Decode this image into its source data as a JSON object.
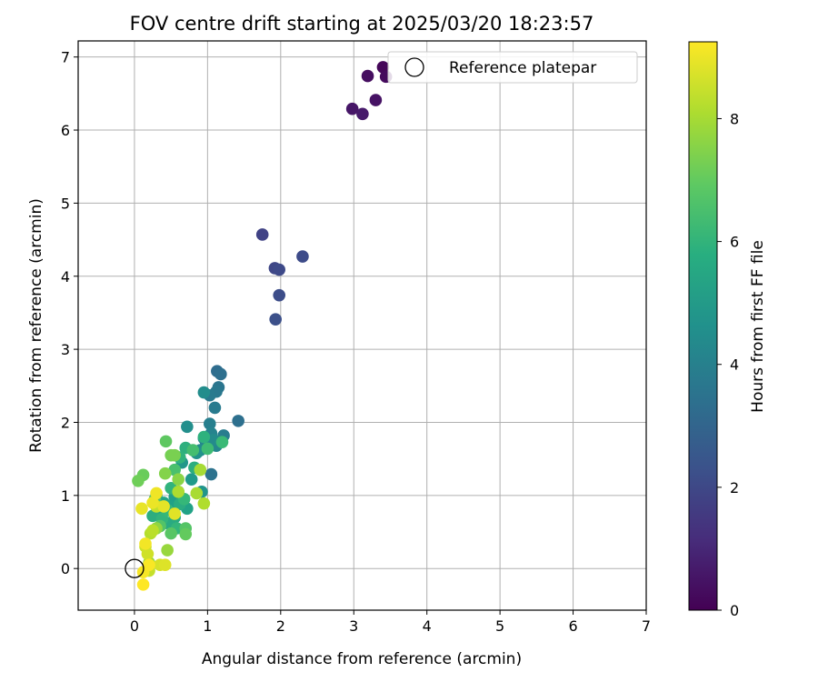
{
  "chart_data": {
    "type": "scatter",
    "title": "FOV centre drift starting at 2025/03/20 18:23:57",
    "xlabel": "Angular distance from reference (arcmin)",
    "ylabel": "Rotation from reference (arcmin)",
    "xlim": [
      -0.77,
      7.0
    ],
    "ylim": [
      -0.57,
      7.22
    ],
    "xticks": [
      0,
      1,
      2,
      3,
      4,
      5,
      6,
      7
    ],
    "yticks": [
      0,
      1,
      2,
      3,
      4,
      5,
      6,
      7
    ],
    "grid": true,
    "legend": {
      "position": "top-right",
      "entries": [
        "Reference platepar"
      ]
    },
    "reference_point": {
      "label": "Reference platepar",
      "x": 0.0,
      "y": 0.0
    },
    "colorbar": {
      "label": "Hours from first FF file",
      "colormap": "viridis",
      "range": [
        0,
        9.25
      ],
      "ticks": [
        0,
        2,
        4,
        6,
        8
      ]
    },
    "series": [
      {
        "fields": [
          "x",
          "y",
          "hours"
        ],
        "points": [
          [
            3.4,
            6.86,
            0.15
          ],
          [
            3.44,
            6.73,
            0.25
          ],
          [
            3.19,
            6.74,
            0.35
          ],
          [
            3.3,
            6.41,
            0.45
          ],
          [
            2.98,
            6.29,
            0.55
          ],
          [
            3.12,
            6.22,
            0.65
          ],
          [
            1.75,
            4.57,
            1.8
          ],
          [
            1.92,
            4.11,
            1.95
          ],
          [
            1.98,
            4.09,
            2.05
          ],
          [
            2.3,
            4.27,
            2.1
          ],
          [
            1.98,
            3.74,
            2.15
          ],
          [
            1.93,
            3.41,
            2.25
          ],
          [
            1.13,
            2.7,
            3.3
          ],
          [
            1.18,
            2.66,
            3.35
          ],
          [
            1.42,
            2.02,
            3.4
          ],
          [
            1.05,
            1.29,
            3.5
          ],
          [
            1.15,
            2.48,
            3.6
          ],
          [
            1.12,
            2.42,
            3.7
          ],
          [
            1.03,
            2.37,
            3.8
          ],
          [
            1.1,
            2.2,
            3.85
          ],
          [
            1.22,
            1.82,
            3.9
          ],
          [
            1.03,
            1.98,
            4.0
          ],
          [
            0.98,
            1.72,
            4.1
          ],
          [
            1.05,
            1.85,
            4.15
          ],
          [
            0.95,
            1.78,
            4.2
          ],
          [
            1.12,
            1.68,
            4.3
          ],
          [
            0.9,
            1.62,
            4.4
          ],
          [
            1.08,
            1.76,
            4.45
          ],
          [
            0.95,
            2.41,
            4.5
          ],
          [
            0.72,
            1.94,
            4.6
          ],
          [
            0.85,
            1.58,
            4.7
          ],
          [
            0.92,
            1.05,
            4.8
          ],
          [
            0.65,
            1.45,
            4.9
          ],
          [
            0.78,
            1.22,
            5.0
          ],
          [
            0.6,
            1.05,
            5.1
          ],
          [
            0.55,
            0.98,
            5.2
          ],
          [
            0.48,
            0.85,
            5.25
          ],
          [
            0.72,
            0.82,
            5.3
          ],
          [
            0.4,
            0.9,
            5.4
          ],
          [
            0.3,
            1.0,
            5.45
          ],
          [
            0.35,
            0.75,
            5.5
          ],
          [
            0.55,
            0.7,
            5.6
          ],
          [
            0.45,
            0.62,
            5.65
          ],
          [
            0.62,
            0.88,
            5.7
          ],
          [
            0.25,
            0.72,
            5.75
          ],
          [
            0.82,
            1.38,
            5.8
          ],
          [
            0.7,
            1.65,
            5.85
          ],
          [
            0.95,
            1.8,
            5.9
          ],
          [
            0.62,
            1.52,
            5.95
          ],
          [
            0.5,
            1.1,
            6.0
          ],
          [
            0.38,
            0.68,
            6.05
          ],
          [
            0.58,
            0.55,
            6.1
          ],
          [
            0.68,
            0.95,
            6.15
          ],
          [
            0.45,
            0.8,
            6.2
          ],
          [
            1.2,
            1.73,
            6.25
          ],
          [
            1.0,
            1.64,
            6.35
          ],
          [
            0.8,
            1.62,
            6.45
          ],
          [
            0.55,
            1.35,
            6.55
          ],
          [
            0.28,
            0.95,
            6.65
          ],
          [
            0.35,
            0.58,
            6.7
          ],
          [
            0.7,
            0.55,
            6.75
          ],
          [
            0.5,
            0.48,
            6.8
          ],
          [
            0.43,
            1.74,
            6.9
          ],
          [
            0.7,
            0.47,
            7.0
          ],
          [
            0.12,
            1.28,
            7.1
          ],
          [
            0.05,
            1.2,
            7.2
          ],
          [
            0.5,
            1.55,
            7.3
          ],
          [
            0.55,
            1.55,
            7.35
          ],
          [
            0.42,
            1.3,
            7.5
          ],
          [
            0.6,
            1.22,
            7.6
          ],
          [
            0.3,
            0.55,
            7.7
          ],
          [
            0.45,
            0.25,
            7.8
          ],
          [
            0.2,
            0.08,
            7.9
          ],
          [
            0.9,
            1.35,
            8.0
          ],
          [
            0.85,
            1.03,
            8.05
          ],
          [
            0.6,
            1.05,
            8.1
          ],
          [
            0.95,
            0.89,
            8.15
          ],
          [
            0.22,
            0.48,
            8.2
          ],
          [
            0.25,
            0.52,
            8.3
          ],
          [
            0.3,
            0.85,
            8.4
          ],
          [
            0.2,
            -0.03,
            8.45
          ],
          [
            0.15,
            0.3,
            8.55
          ],
          [
            0.18,
            0.2,
            8.6
          ],
          [
            0.35,
            0.05,
            8.7
          ],
          [
            0.42,
            0.05,
            8.8
          ],
          [
            0.55,
            0.75,
            8.85
          ],
          [
            0.4,
            0.85,
            8.9
          ],
          [
            0.1,
            0.82,
            8.95
          ],
          [
            0.25,
            0.9,
            9.0
          ],
          [
            0.3,
            1.03,
            9.05
          ],
          [
            0.15,
            0.34,
            9.1
          ],
          [
            0.12,
            -0.05,
            9.15
          ],
          [
            0.2,
            0.05,
            9.2
          ],
          [
            0.12,
            -0.22,
            9.25
          ]
        ]
      }
    ]
  }
}
